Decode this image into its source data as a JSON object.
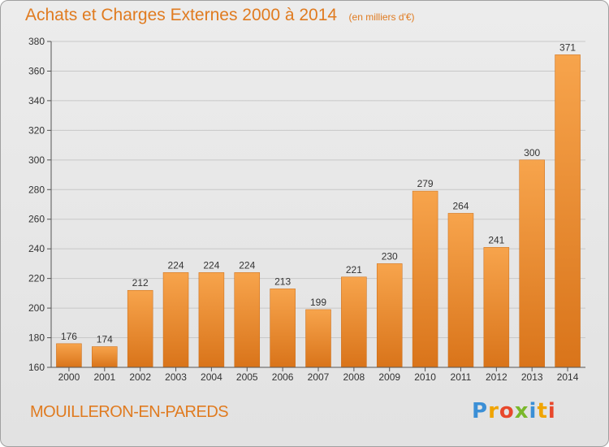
{
  "header": {
    "title": "Achats et Charges Externes 2000 à 2014",
    "subtitle": "(en milliers d'€)"
  },
  "footer": {
    "place": "MOUILLERON-EN-PAREDS",
    "logo_text": "Proxiti"
  },
  "colors": {
    "accent": "#e07b20",
    "bar_light": "#f7a44c",
    "bar_dark": "#d9741a"
  },
  "chart_data": {
    "type": "bar",
    "title": "Achats et Charges Externes 2000 à 2014",
    "subtitle": "(en milliers d'€)",
    "categories": [
      "2000",
      "2001",
      "2002",
      "2003",
      "2004",
      "2005",
      "2006",
      "2007",
      "2008",
      "2009",
      "2010",
      "2011",
      "2012",
      "2013",
      "2014"
    ],
    "values": [
      176,
      174,
      212,
      224,
      224,
      224,
      213,
      199,
      221,
      230,
      279,
      264,
      241,
      300,
      371
    ],
    "ylim": [
      160,
      380
    ],
    "yticks": [
      160,
      180,
      200,
      220,
      240,
      260,
      280,
      300,
      320,
      340,
      360,
      380
    ],
    "grid": true,
    "xlabel": "",
    "ylabel": ""
  }
}
